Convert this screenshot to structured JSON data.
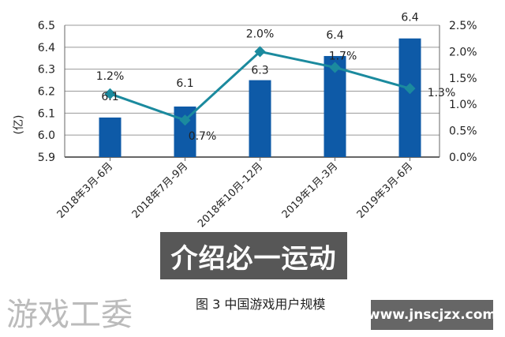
{
  "chart_data": {
    "type": "bar+line",
    "categories": [
      "2018年3月-6月",
      "2018年7月-9月",
      "2018年10月-12月",
      "2019年1月-3月",
      "2019年3月-6月"
    ],
    "series": [
      {
        "kind": "bar",
        "axis": "left",
        "values": [
          6.08,
          6.13,
          6.25,
          6.36,
          6.44
        ],
        "labels": [
          "6.1",
          "6.1",
          "6.3",
          "6.4",
          "6.4"
        ],
        "color": "#0e5aa7"
      },
      {
        "kind": "line",
        "axis": "right",
        "values": [
          1.2,
          0.7,
          2.0,
          1.7,
          1.3
        ],
        "labels": [
          "1.2%",
          "0.7%",
          "2.0%",
          "1.7%",
          "1.3%"
        ],
        "color": "#1b8a9e"
      }
    ],
    "ylabel": "(亿)",
    "ylim": [
      5.9,
      6.5
    ],
    "yticks": [
      "5.9",
      "6.0",
      "6.1",
      "6.2",
      "6.3",
      "6.4",
      "6.5"
    ],
    "y2lim": [
      0,
      2.5
    ],
    "y2ticks": [
      "0.0%",
      "0.5%",
      "1.0%",
      "1.5%",
      "2.0%",
      "2.5%"
    ],
    "grid": true,
    "caption": "图 3  中国游戏用户规模"
  },
  "overlay": {
    "banner": "介绍必一运动",
    "watermark": "www.jnscjzx.com",
    "faint_watermark": "游戏工委"
  }
}
